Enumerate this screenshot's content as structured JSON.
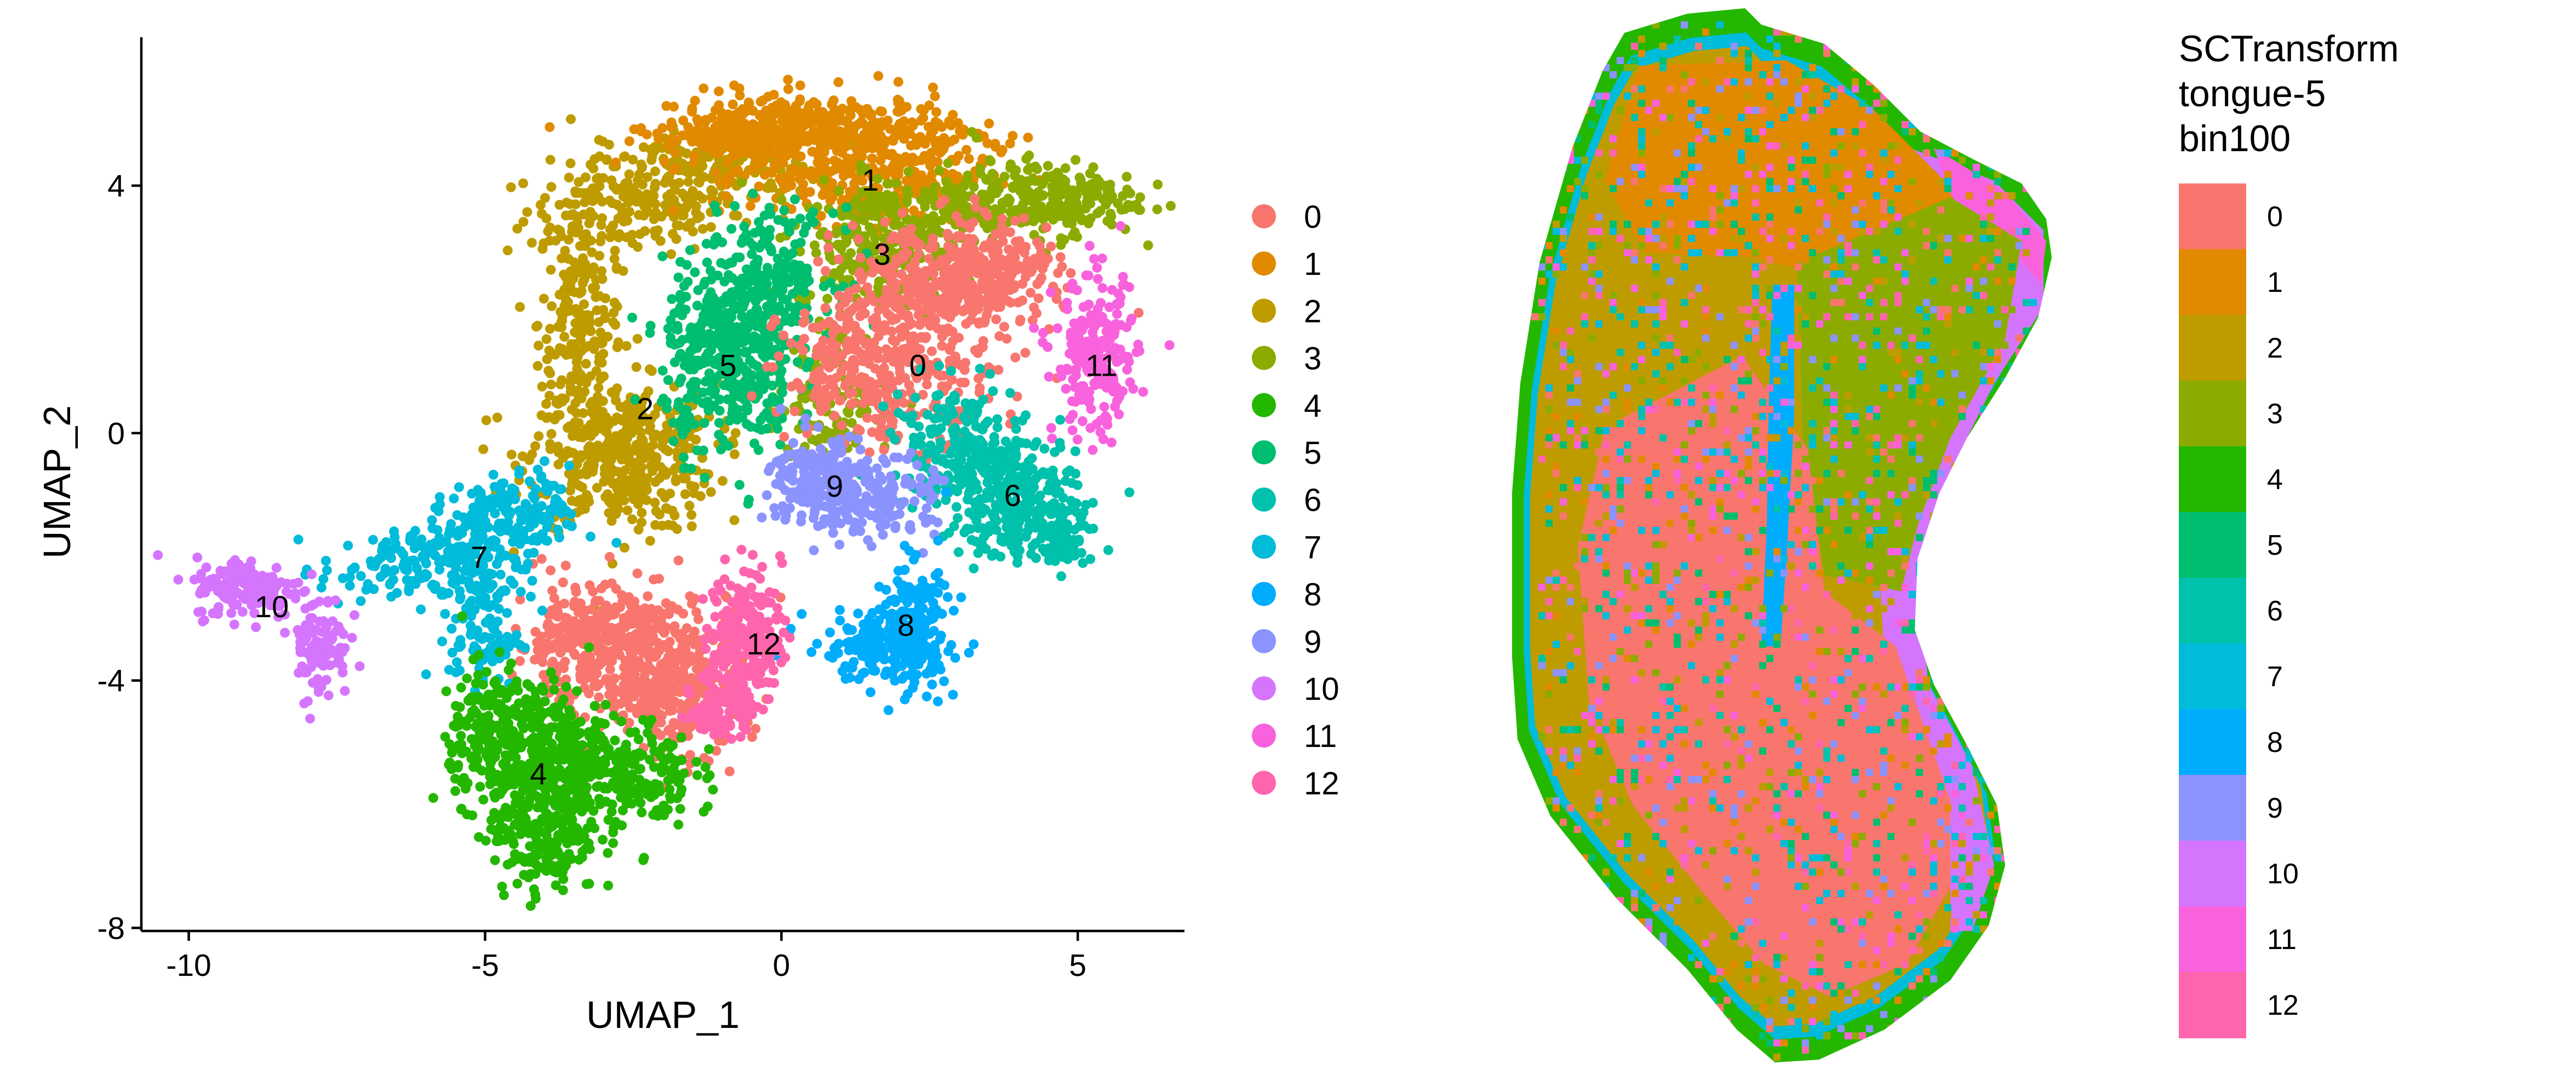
{
  "colors": {
    "0": "#F8766D",
    "1": "#E18A00",
    "2": "#BE9C00",
    "3": "#8CAB00",
    "4": "#24B700",
    "5": "#00BE70",
    "6": "#00C1AB",
    "7": "#00BBDA",
    "8": "#00ACFC",
    "9": "#8B93FF",
    "10": "#D575FE",
    "11": "#F962DD",
    "12": "#FF65AC"
  },
  "chart_data": [
    {
      "type": "scatter",
      "xlabel": "UMAP_1",
      "ylabel": "UMAP_2",
      "xlim": [
        -10.8,
        6.8
      ],
      "ylim": [
        -8.05,
        6.4
      ],
      "x_ticks": [
        "-10",
        "-5",
        "0",
        "5"
      ],
      "y_ticks": [
        "-8",
        "-4",
        "0",
        "4"
      ],
      "grid": false,
      "legend_position": "right",
      "legend": [
        "0",
        "1",
        "2",
        "3",
        "4",
        "5",
        "6",
        "7",
        "8",
        "9",
        "10",
        "11",
        "12"
      ],
      "clusters": [
        {
          "name": "0",
          "label_x": 2.3,
          "label_y": 1.1
        },
        {
          "name": "1",
          "label_x": 1.5,
          "label_y": 4.1
        },
        {
          "name": "2",
          "label_x": -2.3,
          "label_y": 0.4
        },
        {
          "name": "3",
          "label_x": 1.7,
          "label_y": 2.9
        },
        {
          "name": "4",
          "label_x": -4.1,
          "label_y": -5.5
        },
        {
          "name": "5",
          "label_x": -0.9,
          "label_y": 1.1
        },
        {
          "name": "6",
          "label_x": 3.9,
          "label_y": -1.0
        },
        {
          "name": "7",
          "label_x": -5.1,
          "label_y": -2.0
        },
        {
          "name": "8",
          "label_x": 2.1,
          "label_y": -3.1
        },
        {
          "name": "9",
          "label_x": 0.9,
          "label_y": -0.85
        },
        {
          "name": "10",
          "label_x": -8.6,
          "label_y": -2.8
        },
        {
          "name": "11",
          "label_x": 5.4,
          "label_y": 1.1
        },
        {
          "name": "12",
          "label_x": -0.3,
          "label_y": -3.4
        }
      ]
    },
    {
      "type": "heatmap",
      "title": "SCTransform\ntongue-5\nbin100",
      "legend": [
        "0",
        "1",
        "2",
        "3",
        "4",
        "5",
        "6",
        "7",
        "8",
        "9",
        "10",
        "11",
        "12"
      ],
      "legend_position": "right"
    }
  ]
}
